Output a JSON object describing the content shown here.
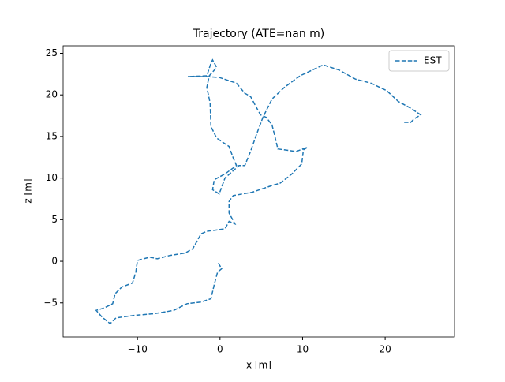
{
  "chart_data": {
    "type": "line",
    "title": "Trajectory (ATE=nan m)",
    "x_label": "x [m]",
    "y_label": "z [m]",
    "series": [
      {
        "name": "EST",
        "color": "#1f77b4",
        "style": "dashed",
        "x": [
          -0.2,
          0.2,
          -0.3,
          -0.7,
          -1.1,
          -2.3,
          -4.0,
          -5.6,
          -8.0,
          -10.4,
          -12.6,
          -13.3,
          -14.3,
          -15.0,
          -14.0,
          -13.0,
          -12.7,
          -11.9,
          -10.6,
          -10.2,
          -10.0,
          -8.5,
          -7.6,
          -6.1,
          -4.2,
          -3.3,
          -2.3,
          -1.6,
          0.6,
          1.1,
          1.8,
          1.1,
          1.1,
          1.6,
          3.9,
          6.3,
          7.3,
          8.7,
          9.9,
          10.1,
          10.6,
          9.2,
          7.0,
          6.6,
          6.3,
          5.6,
          4.9,
          3.7,
          3.0,
          2.0,
          -0.1,
          -1.6,
          -3.9,
          -1.6,
          -1.1,
          -0.9,
          -0.4,
          -1.3,
          -1.6,
          -1.2,
          -1.1,
          -0.4,
          1.1,
          1.6,
          2.0,
          0.6,
          -0.7,
          -0.9,
          -0.1,
          0.6,
          2.3,
          3.0,
          3.7,
          4.4,
          5.2,
          6.3,
          7.8,
          9.7,
          12.5,
          14.4,
          16.4,
          18.3,
          20.2,
          21.6,
          23.1,
          24.3,
          23.5,
          23.1,
          22.3
        ],
        "values": [
          -0.2,
          -0.9,
          -1.3,
          -2.8,
          -4.5,
          -4.9,
          -5.1,
          -5.9,
          -6.3,
          -6.5,
          -6.8,
          -7.5,
          -6.7,
          -5.9,
          -5.6,
          -5.1,
          -3.9,
          -3.1,
          -2.6,
          -1.3,
          0.1,
          0.5,
          0.3,
          0.7,
          1.0,
          1.5,
          3.3,
          3.6,
          3.9,
          4.8,
          4.5,
          5.8,
          7.2,
          7.9,
          8.3,
          9.1,
          9.4,
          10.5,
          11.7,
          13.4,
          13.7,
          13.2,
          13.5,
          15.2,
          16.4,
          17.3,
          17.6,
          19.8,
          20.2,
          21.4,
          22.1,
          22.2,
          22.2,
          22.3,
          23.8,
          24.2,
          23.3,
          22.3,
          20.9,
          19.0,
          16.2,
          14.8,
          13.8,
          12.4,
          11.5,
          10.5,
          9.8,
          8.6,
          8.1,
          10.0,
          11.5,
          11.5,
          13.2,
          15.2,
          17.3,
          19.5,
          20.9,
          22.3,
          23.6,
          23.0,
          21.9,
          21.4,
          20.5,
          19.2,
          18.4,
          17.6,
          17.1,
          16.7,
          16.7
        ]
      }
    ],
    "xlim": [
      -19.0,
      28.4
    ],
    "ylim": [
      -9.1,
      25.9
    ],
    "xticks": [
      {
        "value": -10,
        "label": "−10"
      },
      0,
      10,
      20
    ],
    "yticks": [
      {
        "value": -5,
        "label": "−5"
      },
      0,
      5,
      10,
      15,
      20,
      25
    ],
    "grid": false,
    "legend": "upper right"
  }
}
